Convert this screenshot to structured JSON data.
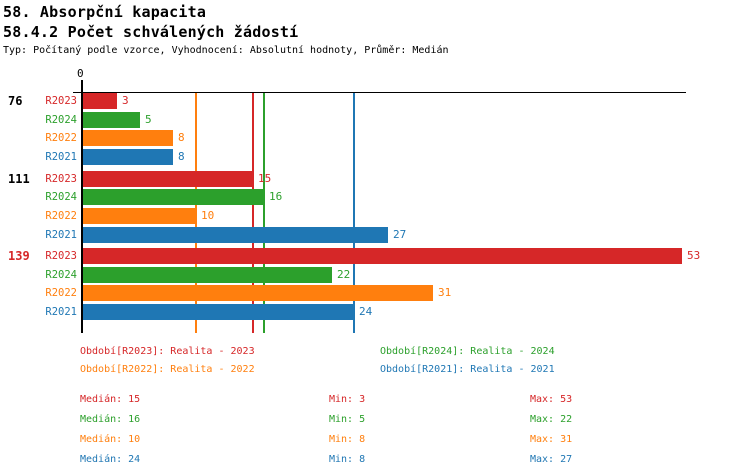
{
  "page": {
    "title_line1": "58. Absorpční kapacita",
    "title_line2": "58.4.2 Počet schválených žádostí",
    "meta_line": "Typ: Počítaný podle vzorce, Vyhodnocení: Absolutní hodnoty, Průměr: Medián"
  },
  "colors": {
    "r2023": "#d62728",
    "r2024": "#2ca02c",
    "r2022": "#ff7f0e",
    "r2021": "#1f77b4",
    "axis": "#000000",
    "group_highlight": "#d62728",
    "text": "#000000"
  },
  "chart_data": {
    "type": "bar",
    "orientation": "horizontal",
    "title": "58.4.2 Počet schválených žádostí",
    "axis": {
      "zero_label": "0",
      "xlim": [
        0,
        55
      ],
      "grid": false
    },
    "row_order": [
      "R2023",
      "R2024",
      "R2022",
      "R2021"
    ],
    "categories": [
      "76",
      "111",
      "139"
    ],
    "category_colors": [
      "#000000",
      "#000000",
      "#d62728"
    ],
    "series": [
      {
        "name": "R2023",
        "legend": "Období[R2023]: Realita - 2023",
        "color": "#d62728",
        "values": [
          3,
          15,
          53
        ],
        "median": 15,
        "min": 3,
        "max": 53
      },
      {
        "name": "R2024",
        "legend": "Období[R2024]: Realita - 2024",
        "color": "#2ca02c",
        "values": [
          5,
          16,
          22
        ],
        "median": 16,
        "min": 5,
        "max": 22
      },
      {
        "name": "R2022",
        "legend": "Období[R2022]: Realita - 2022",
        "color": "#ff7f0e",
        "values": [
          8,
          10,
          31
        ],
        "median": 10,
        "min": 8,
        "max": 31
      },
      {
        "name": "R2021",
        "legend": "Období[R2021]: Realita - 2021",
        "color": "#1f77b4",
        "values": [
          8,
          27,
          24
        ],
        "median": 24,
        "min": 8,
        "max": 27
      }
    ],
    "median_lines_shown": true
  },
  "legend": {
    "items": [
      {
        "series": "R2023",
        "label": "Období[R2023]: Realita - 2023",
        "color": "#d62728",
        "col": 0,
        "row": 0
      },
      {
        "series": "R2024",
        "label": "Období[R2024]: Realita - 2024",
        "color": "#2ca02c",
        "col": 1,
        "row": 0
      },
      {
        "series": "R2022",
        "label": "Období[R2022]: Realita - 2022",
        "color": "#ff7f0e",
        "col": 0,
        "row": 1
      },
      {
        "series": "R2021",
        "label": "Období[R2021]: Realita - 2021",
        "color": "#1f77b4",
        "col": 1,
        "row": 1
      }
    ]
  },
  "stats": {
    "rows": [
      {
        "series": "R2023",
        "color": "#d62728",
        "median_label": "Medián: 15",
        "min_label": "Min: 3",
        "max_label": "Max: 53"
      },
      {
        "series": "R2024",
        "color": "#2ca02c",
        "median_label": "Medián: 16",
        "min_label": "Min: 5",
        "max_label": "Max: 22"
      },
      {
        "series": "R2022",
        "color": "#ff7f0e",
        "median_label": "Medián: 10",
        "min_label": "Min: 8",
        "max_label": "Max: 31"
      },
      {
        "series": "R2021",
        "color": "#1f77b4",
        "median_label": "Medián: 24",
        "min_label": "Min: 8",
        "max_label": "Max: 27"
      }
    ]
  }
}
